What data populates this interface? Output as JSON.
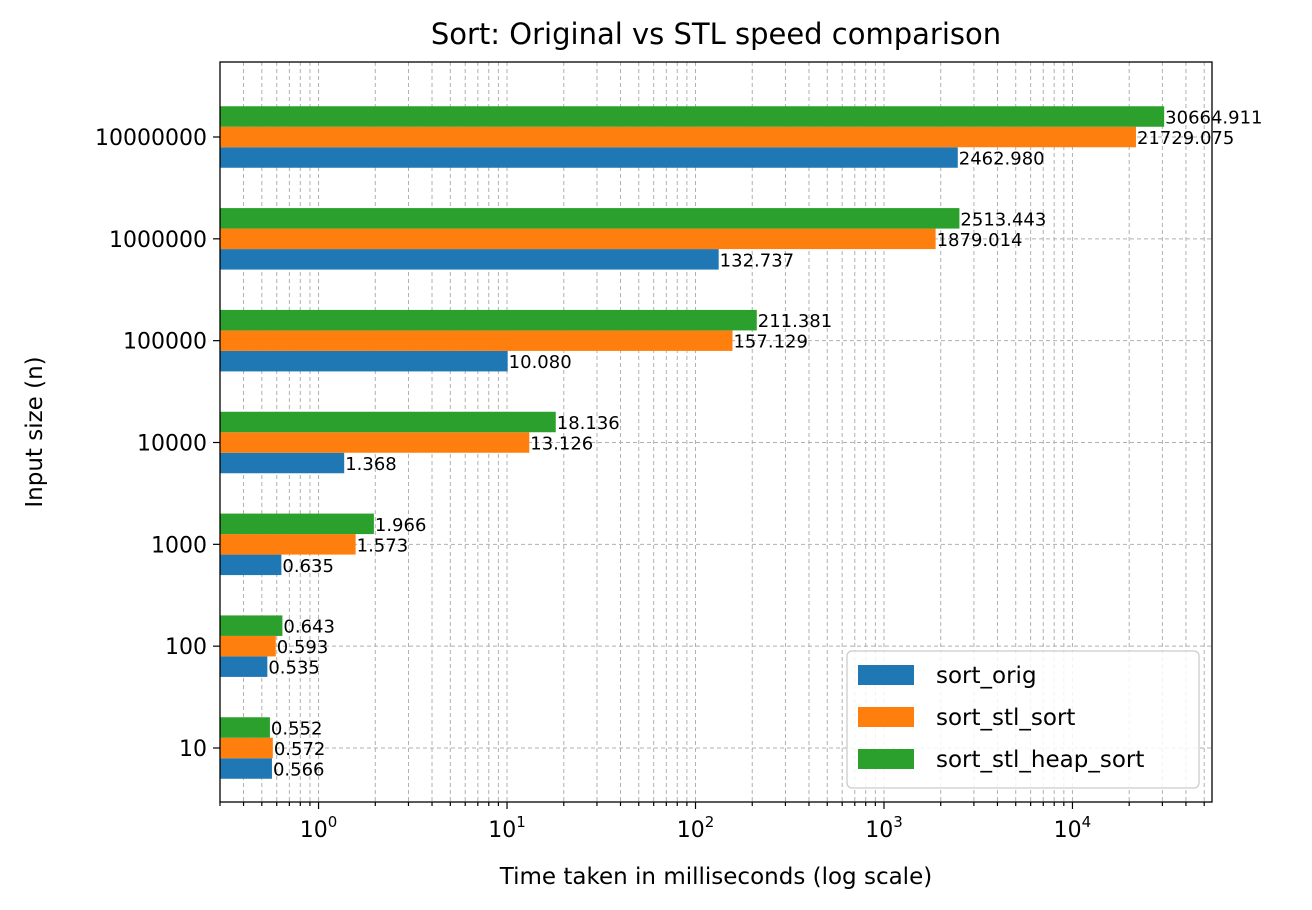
{
  "chart_data": {
    "type": "bar",
    "orientation": "horizontal",
    "title": "Sort: Original vs STL speed comparison",
    "xlabel": "Time taken in milliseconds (log scale)",
    "ylabel": "Input size (n)",
    "xscale": "log",
    "xlim": [
      0.3,
      55000
    ],
    "xticks": [
      {
        "base": "10",
        "exp": "0"
      },
      {
        "base": "10",
        "exp": "1"
      },
      {
        "base": "10",
        "exp": "2"
      },
      {
        "base": "10",
        "exp": "3"
      },
      {
        "base": "10",
        "exp": "4"
      }
    ],
    "grid": true,
    "legend_position": "lower-right",
    "categories": [
      "10",
      "100",
      "1000",
      "10000",
      "100000",
      "1000000",
      "10000000"
    ],
    "series": [
      {
        "name": "sort_orig",
        "color": "#1f77b4",
        "values": [
          0.566,
          0.535,
          0.635,
          1.368,
          10.08,
          132.737,
          2462.98
        ],
        "labels": [
          "0.566",
          "0.535",
          "0.635",
          "1.368",
          "10.080",
          "132.737",
          "2462.980"
        ]
      },
      {
        "name": "sort_stl_sort",
        "color": "#ff7f0e",
        "values": [
          0.572,
          0.593,
          1.573,
          13.126,
          157.129,
          1879.014,
          21729.075
        ],
        "labels": [
          "0.572",
          "0.593",
          "1.573",
          "13.126",
          "157.129",
          "1879.014",
          "21729.075"
        ]
      },
      {
        "name": "sort_stl_heap_sort",
        "color": "#2ca02c",
        "values": [
          0.552,
          0.643,
          1.966,
          18.136,
          211.381,
          2513.443,
          30664.911
        ],
        "labels": [
          "0.552",
          "0.643",
          "1.966",
          "18.136",
          "211.381",
          "2513.443",
          "30664.911"
        ]
      }
    ]
  }
}
